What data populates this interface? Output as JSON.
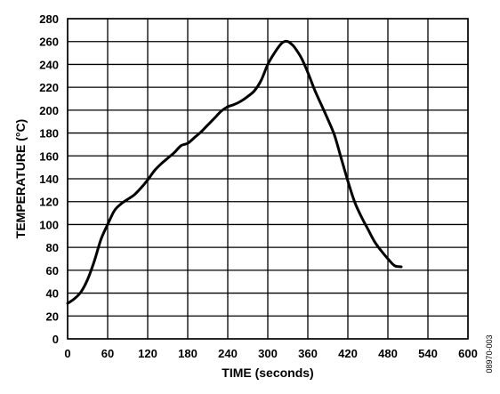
{
  "chart_data": {
    "type": "line",
    "xlabel": "TIME (seconds)",
    "ylabel": "TEMPERATURE (°C)",
    "xlim": [
      0,
      600
    ],
    "ylim": [
      0,
      280
    ],
    "xticks": [
      0,
      60,
      120,
      180,
      240,
      300,
      360,
      420,
      480,
      540,
      600
    ],
    "yticks": [
      0,
      20,
      40,
      60,
      80,
      100,
      120,
      140,
      160,
      180,
      200,
      220,
      240,
      260,
      280
    ],
    "grid": true,
    "legend": "none",
    "line_color": "#000000",
    "series": [
      {
        "x": [
          0,
          10,
          20,
          30,
          40,
          50,
          60,
          70,
          80,
          90,
          100,
          110,
          120,
          130,
          140,
          150,
          160,
          170,
          180,
          190,
          200,
          210,
          220,
          230,
          240,
          250,
          260,
          270,
          280,
          290,
          300,
          310,
          320,
          325,
          330,
          335,
          340,
          350,
          360,
          370,
          380,
          390,
          400,
          410,
          420,
          430,
          440,
          450,
          460,
          470,
          480,
          490,
          500
        ],
        "y": [
          31,
          35,
          41,
          52,
          68,
          87,
          100,
          112,
          118,
          122,
          126,
          132,
          139,
          147,
          153,
          158,
          163,
          169,
          171,
          176,
          181,
          187,
          193,
          199,
          203,
          205,
          208,
          212,
          217,
          226,
          240,
          250,
          258,
          260,
          260,
          258,
          255,
          246,
          233,
          218,
          205,
          192,
          178,
          158,
          138,
          120,
          107,
          96,
          85,
          77,
          70,
          64,
          63
        ]
      }
    ],
    "figure_id": "08970-003"
  }
}
